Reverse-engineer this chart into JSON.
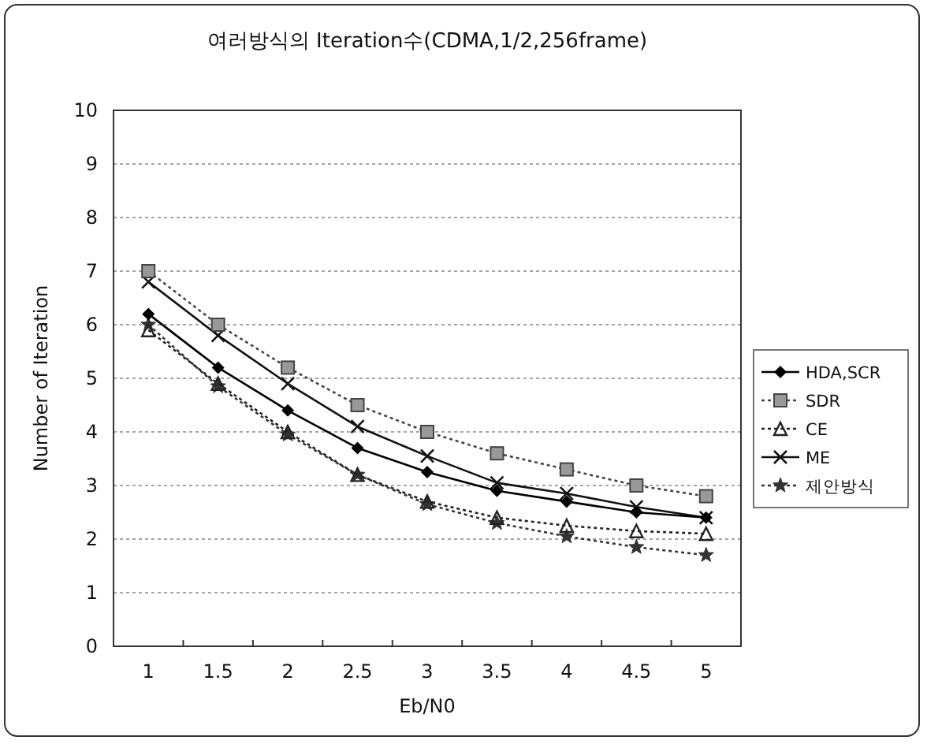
{
  "chart_data": {
    "type": "line",
    "title": "여러방식의 Iteration수(CDMA,1/2,256frame)",
    "xlabel": "Eb/N0",
    "ylabel": "Number of Iteration",
    "categories": [
      "1",
      "1.5",
      "2",
      "2.5",
      "3",
      "3.5",
      "4",
      "4.5",
      "5"
    ],
    "ylim": [
      0,
      10
    ],
    "yticks": [
      0,
      1,
      2,
      3,
      4,
      5,
      6,
      7,
      8,
      9,
      10
    ],
    "grid": "y",
    "legend": "right",
    "series": [
      {
        "name": "HDA,SCR",
        "color": "#000000",
        "marker": "diamond",
        "line_style": "solid",
        "values": [
          6.2,
          5.2,
          4.4,
          3.7,
          3.25,
          2.9,
          2.7,
          2.5,
          2.4
        ]
      },
      {
        "name": "SDR",
        "color": "#444444",
        "marker": "square",
        "line_style": "dotted",
        "values": [
          7.0,
          6.0,
          5.2,
          4.5,
          4.0,
          3.6,
          3.3,
          3.0,
          2.8
        ]
      },
      {
        "name": "CE",
        "color": "#222222",
        "marker": "triangle",
        "line_style": "dotted",
        "values": [
          5.9,
          4.9,
          4.0,
          3.2,
          2.7,
          2.4,
          2.25,
          2.15,
          2.1
        ]
      },
      {
        "name": "ME",
        "color": "#111111",
        "marker": "cross",
        "line_style": "solid",
        "values": [
          6.8,
          5.8,
          4.9,
          4.1,
          3.55,
          3.05,
          2.85,
          2.6,
          2.4
        ]
      },
      {
        "name": "제안방식",
        "color": "#333333",
        "marker": "star",
        "line_style": "dotted",
        "values": [
          6.0,
          4.85,
          3.95,
          3.2,
          2.65,
          2.3,
          2.05,
          1.85,
          1.7
        ]
      }
    ]
  }
}
